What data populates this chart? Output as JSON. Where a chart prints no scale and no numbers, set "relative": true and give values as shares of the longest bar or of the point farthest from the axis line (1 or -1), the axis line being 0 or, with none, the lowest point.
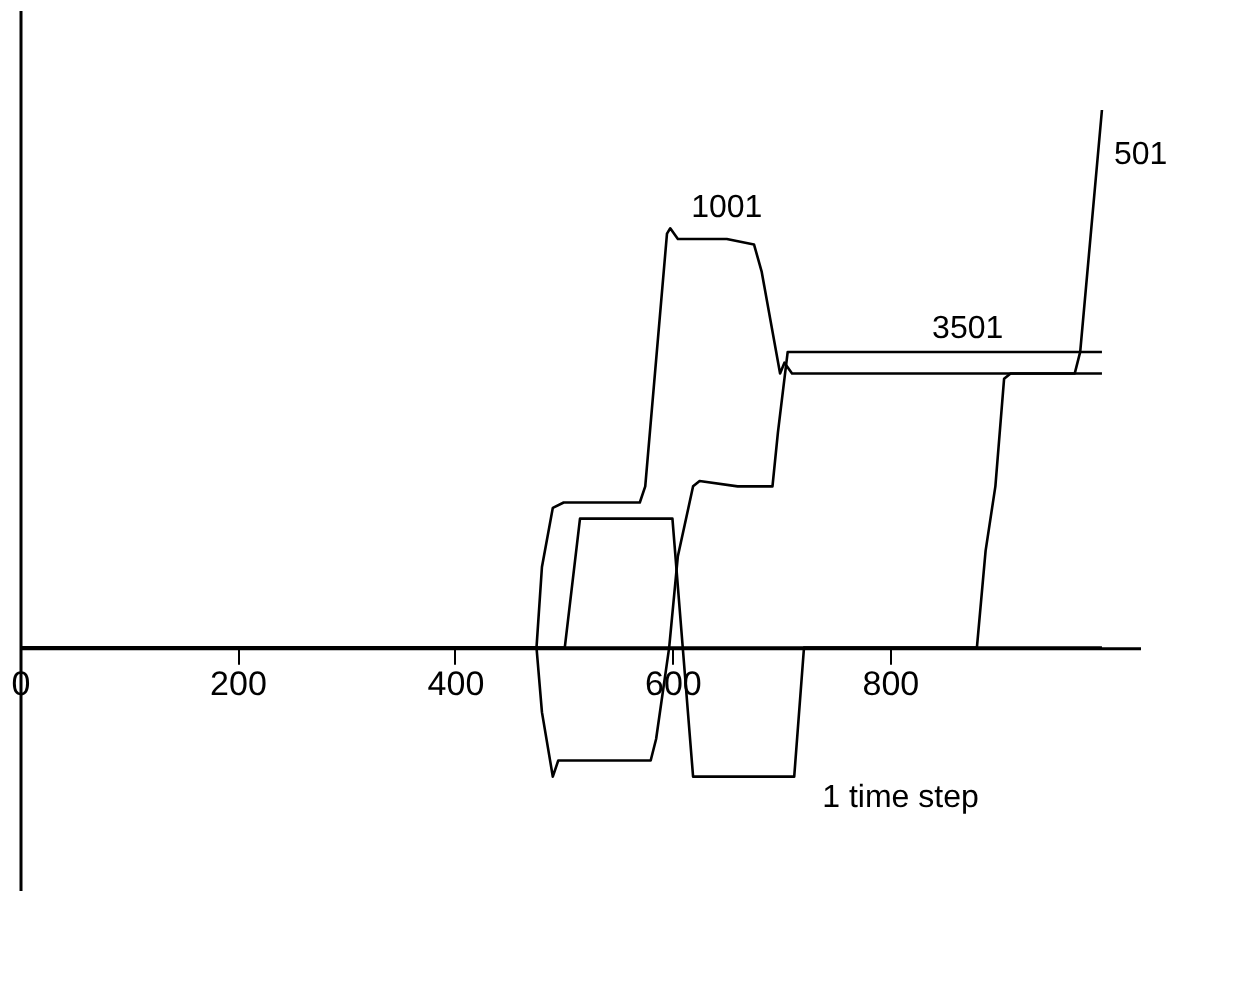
{
  "chart_data": {
    "type": "line",
    "relative": true,
    "xlim": [
      0,
      1030
    ],
    "xticks": [
      0,
      200,
      400,
      600,
      800
    ],
    "grid": false,
    "tick_labels": "x",
    "series": [
      {
        "name": "1001",
        "color": "#000000",
        "x": [
          0,
          475,
          480,
          490,
          500,
          570,
          575,
          595,
          598,
          605,
          650,
          675,
          682,
          699,
          703,
          710,
          995
        ],
        "values": [
          0,
          0,
          0.15,
          0.26,
          0.27,
          0.27,
          0.3,
          0.77,
          0.78,
          0.76,
          0.76,
          0.75,
          0.7,
          0.51,
          0.53,
          0.51,
          0.51
        ]
      },
      {
        "name": "3501",
        "color": "#000000",
        "x": [
          0,
          475,
          480,
          490,
          495,
          580,
          585,
          597,
          605,
          619,
          625,
          660,
          692,
          697,
          706,
          995
        ],
        "values": [
          0,
          0,
          -0.12,
          -0.24,
          -0.21,
          -0.21,
          -0.17,
          0,
          0.17,
          0.3,
          0.31,
          0.3,
          0.3,
          0.4,
          0.55,
          0.55
        ]
      },
      {
        "name": "501",
        "color": "#000000",
        "x": [
          0,
          880,
          888,
          894,
          897,
          905,
          911,
          970,
          975,
          995
        ],
        "values": [
          0,
          0,
          0.18,
          0.26,
          0.3,
          0.5,
          0.51,
          0.51,
          0.55,
          1.0
        ]
      },
      {
        "name": "1 time step",
        "color": "#000000",
        "x": [
          0,
          501,
          515,
          600,
          619,
          712,
          721,
          995
        ],
        "values": [
          0,
          0,
          0.24,
          0.24,
          -0.24,
          -0.24,
          0,
          0
        ]
      }
    ]
  }
}
